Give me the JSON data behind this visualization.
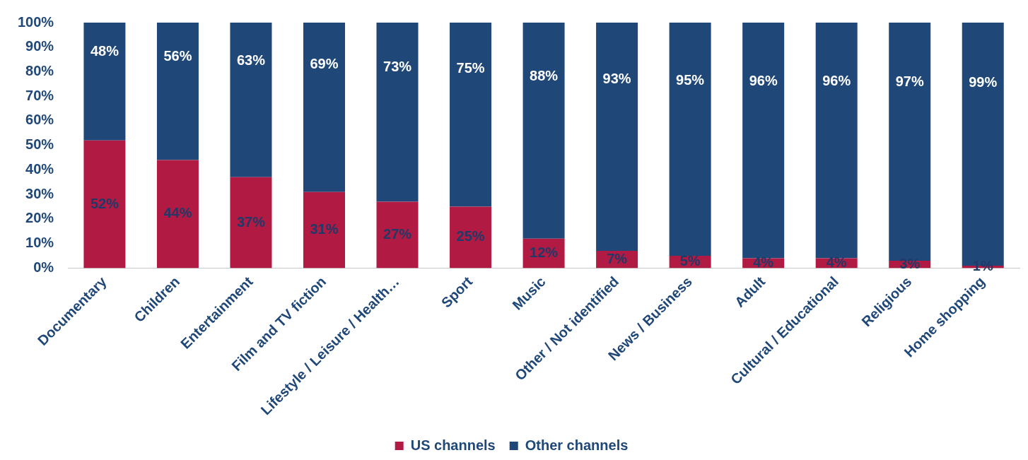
{
  "chart_data": {
    "type": "bar",
    "stacked": true,
    "categories": [
      "Documentary",
      "Children",
      "Entertainment",
      "Film and TV fiction",
      "Lifestyle / Leisure / Health…",
      "Sport",
      "Music",
      "Other / Not identified",
      "News / Business",
      "Adult",
      "Cultural / Educational",
      "Religious",
      "Home shopping"
    ],
    "series": [
      {
        "name": "US channels",
        "color": "#b11a42",
        "values": [
          52,
          44,
          37,
          31,
          27,
          25,
          12,
          7,
          5,
          4,
          4,
          3,
          1
        ],
        "value_labels": [
          "52%",
          "44%",
          "37%",
          "31%",
          "27%",
          "25%",
          "12%",
          "7%",
          "5%",
          "4%",
          "4%",
          "3%",
          "1%"
        ]
      },
      {
        "name": "Other channels",
        "color": "#1f4778",
        "values": [
          48,
          56,
          63,
          69,
          73,
          75,
          88,
          93,
          95,
          96,
          96,
          97,
          99
        ],
        "value_labels": [
          "48%",
          "56%",
          "63%",
          "69%",
          "73%",
          "75%",
          "88%",
          "93%",
          "95%",
          "96%",
          "96%",
          "97%",
          "99%"
        ]
      }
    ],
    "ylim": [
      0,
      100
    ],
    "yticks": [
      {
        "value": 0,
        "label": "0%"
      },
      {
        "value": 10,
        "label": "10%"
      },
      {
        "value": 20,
        "label": "20%"
      },
      {
        "value": 30,
        "label": "30%"
      },
      {
        "value": 40,
        "label": "40%"
      },
      {
        "value": 50,
        "label": "50%"
      },
      {
        "value": 60,
        "label": "60%"
      },
      {
        "value": 70,
        "label": "70%"
      },
      {
        "value": 80,
        "label": "80%"
      },
      {
        "value": 90,
        "label": "90%"
      },
      {
        "value": 100,
        "label": "100%"
      }
    ],
    "legend": "bottom",
    "grid": false
  }
}
